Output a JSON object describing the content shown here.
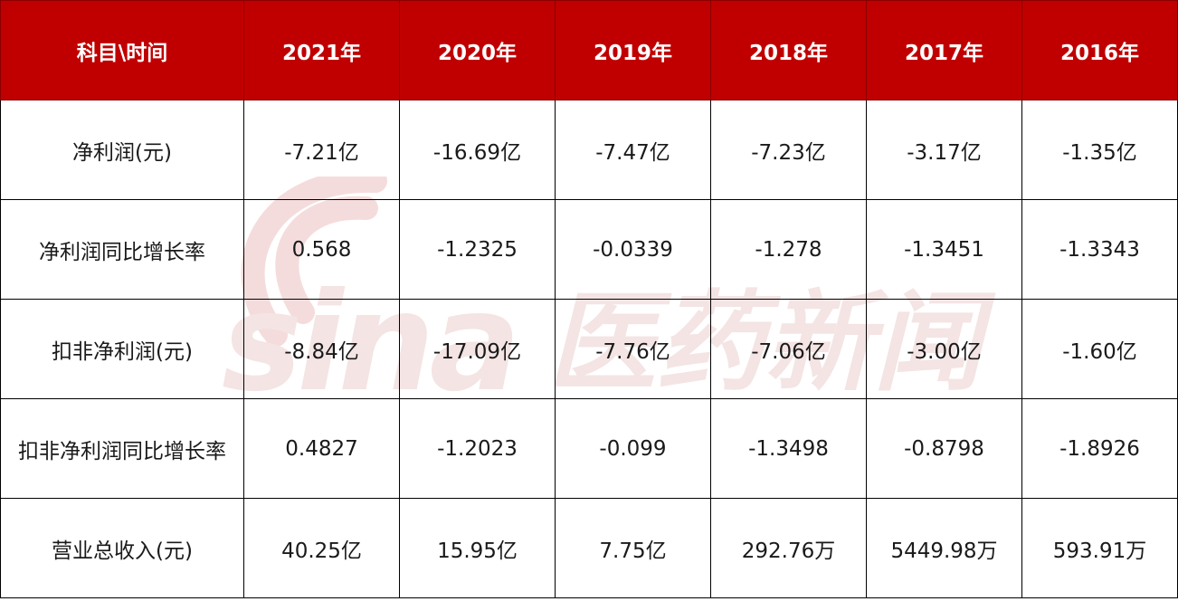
{
  "table": {
    "header_bg": "#c00000",
    "columns": [
      "科目\\时间",
      "2021年",
      "2020年",
      "2019年",
      "2018年",
      "2017年",
      "2016年"
    ],
    "rows": [
      [
        "净利润(元)",
        "-7.21亿",
        "-16.69亿",
        "-7.47亿",
        "-7.23亿",
        "-3.17亿",
        "-1.35亿"
      ],
      [
        "净利润同比增长率",
        "0.568",
        "-1.2325",
        "-0.0339",
        "-1.278",
        "-1.3451",
        "-1.3343"
      ],
      [
        "扣非净利润(元)",
        "-8.84亿",
        "-17.09亿",
        "-7.76亿",
        "-7.06亿",
        "-3.00亿",
        "-1.60亿"
      ],
      [
        "扣非净利润同比增长率",
        "0.4827",
        "-1.2023",
        "-0.099",
        "-1.3498",
        "-0.8798",
        "-1.8926"
      ],
      [
        "营业总收入(元)",
        "40.25亿",
        "15.95亿",
        "7.75亿",
        "292.76万",
        "5449.98万",
        "593.91万"
      ]
    ]
  },
  "watermark": {
    "text": "sina医药新闻",
    "icon": "sina-eye-logo",
    "color": "#f2d6d6"
  }
}
